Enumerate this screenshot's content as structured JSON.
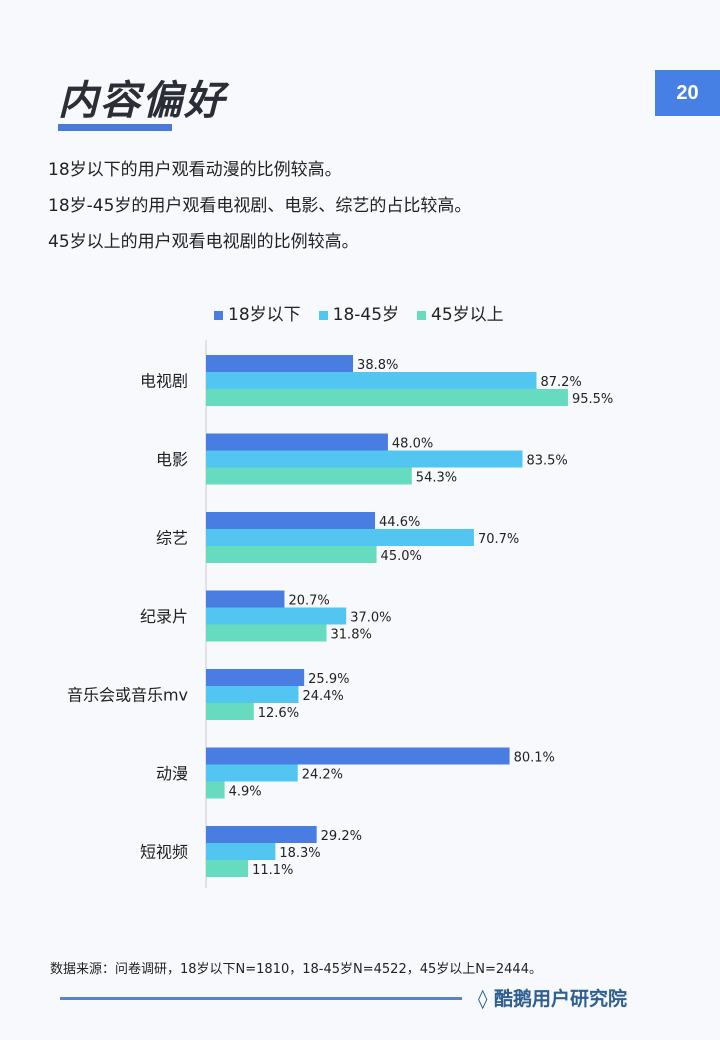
{
  "page": {
    "title": "内容偏好",
    "page_number": "20",
    "summary": [
      "18岁以下的用户观看动漫的比例较高。",
      "18岁-45岁的用户观看电视剧、电影、综艺的占比较高。",
      "45岁以上的用户观看电视剧的比例较高。"
    ],
    "source": "数据来源：问卷调研，18岁以下N=1810，18-45岁N=4522，45岁以上N=2444。",
    "brand": "酷鹅用户研究院"
  },
  "chart_data": {
    "type": "bar",
    "orientation": "horizontal",
    "categories": [
      "电视剧",
      "电影",
      "综艺",
      "纪录片",
      "音乐会或音乐mv",
      "动漫",
      "短视频"
    ],
    "series": [
      {
        "name": "18岁以下",
        "color": "#4a7de2",
        "values": [
          38.8,
          48.0,
          44.6,
          20.7,
          25.9,
          80.1,
          29.2
        ]
      },
      {
        "name": "18-45岁",
        "color": "#52c5f0",
        "values": [
          87.2,
          83.5,
          70.7,
          37.0,
          24.4,
          24.2,
          18.3
        ]
      },
      {
        "name": "45岁以上",
        "color": "#66dbbf",
        "values": [
          95.5,
          54.3,
          45.0,
          31.8,
          12.6,
          4.9,
          11.1
        ]
      }
    ],
    "value_format": "%",
    "xlim": [
      0,
      100
    ],
    "legend": "top",
    "grid": false
  }
}
